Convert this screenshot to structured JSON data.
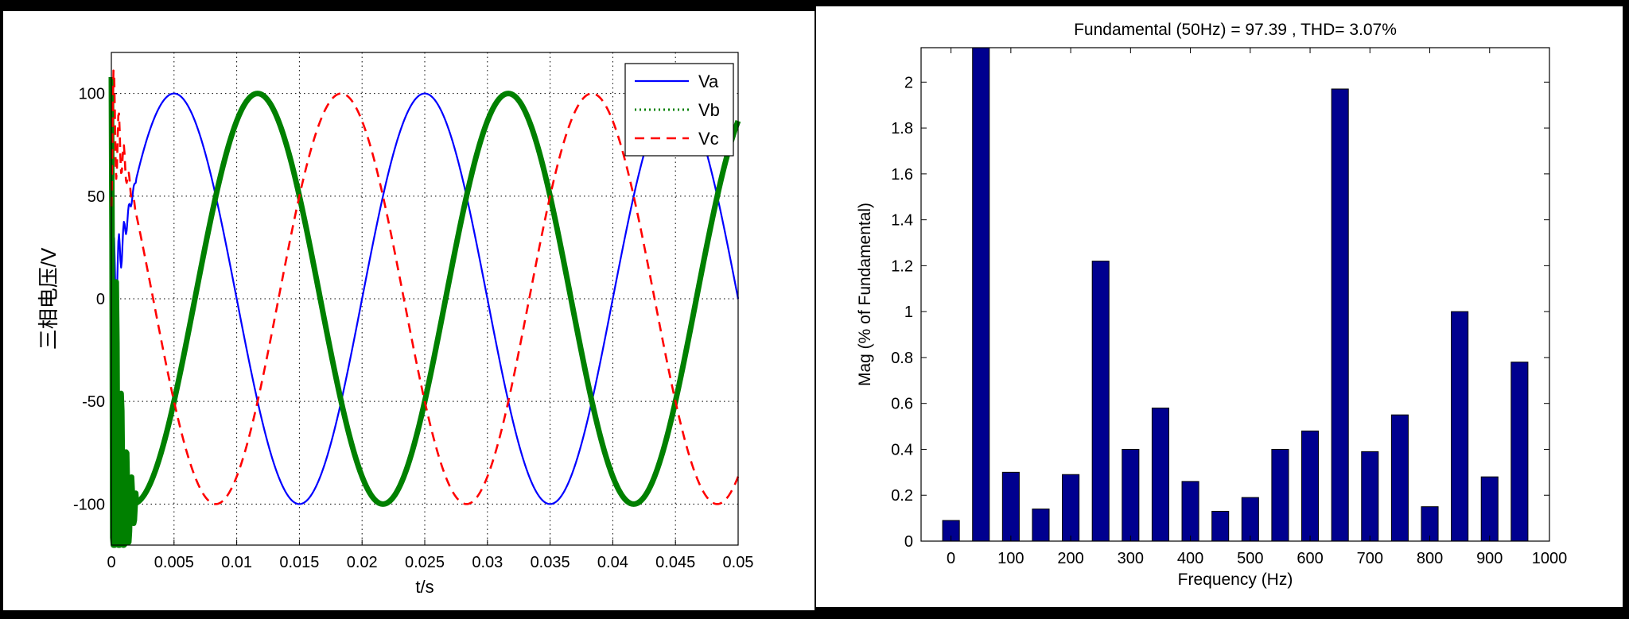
{
  "chart_data": [
    {
      "type": "line",
      "xlabel": "t/s",
      "ylabel": "三相电压/V",
      "xlim": [
        0,
        0.05
      ],
      "ylim": [
        -120,
        120
      ],
      "xticks": [
        "0",
        "0.005",
        "0.01",
        "0.015",
        "0.02",
        "0.025",
        "0.03",
        "0.035",
        "0.04",
        "0.045",
        "0.05"
      ],
      "yticks": [
        "-100",
        "-50",
        "0",
        "50",
        "100"
      ],
      "grid": "dotted",
      "legend": "top-right",
      "frequency_hz": 50,
      "amplitude": 100,
      "series": [
        {
          "name": "Va",
          "color": "#0000ff",
          "style": "solid",
          "phase_deg": 0
        },
        {
          "name": "Vb",
          "color": "#008000",
          "style": "dotted-thick",
          "phase_deg": -120
        },
        {
          "name": "Vc",
          "color": "#ff0000",
          "style": "dashed",
          "phase_deg": 120
        }
      ]
    },
    {
      "type": "bar",
      "title": "Fundamental (50Hz) = 97.39 , THD= 3.07%",
      "xlabel": "Frequency (Hz)",
      "ylabel": "Mag (% of Fundamental)",
      "xlim": [
        -50,
        1000
      ],
      "ylim": [
        0,
        2.15
      ],
      "xticks": [
        "0",
        "100",
        "200",
        "300",
        "400",
        "500",
        "600",
        "700",
        "800",
        "900",
        "1000"
      ],
      "yticks": [
        "0",
        "0.2",
        "0.4",
        "0.6",
        "0.8",
        "1",
        "1.2",
        "1.4",
        "1.6",
        "1.8",
        "2"
      ],
      "bar_color": "#00008f",
      "x": [
        0,
        50,
        100,
        150,
        200,
        250,
        300,
        350,
        400,
        450,
        500,
        550,
        600,
        650,
        700,
        750,
        800,
        850,
        900,
        950
      ],
      "values": [
        0.09,
        2.2,
        0.3,
        0.14,
        0.29,
        1.22,
        0.4,
        0.58,
        0.26,
        0.13,
        0.19,
        0.4,
        0.48,
        1.97,
        0.39,
        0.55,
        0.15,
        1.0,
        0.28,
        0.78
      ]
    }
  ]
}
